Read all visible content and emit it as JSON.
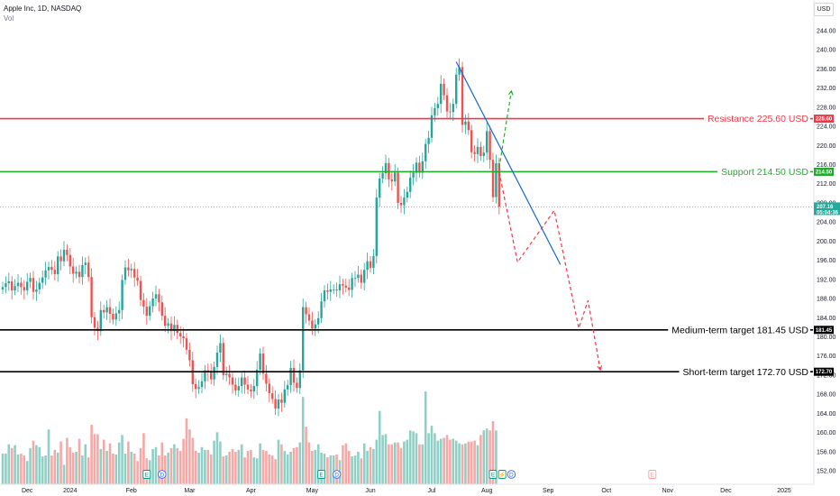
{
  "header": {
    "symbol_line": "Apple Inc, 1D, NASDAQ",
    "vol_label": "Vol",
    "currency_button": "USD"
  },
  "chart_data": {
    "type": "candlestick",
    "symbol": "Apple Inc",
    "interval": "1D",
    "exchange": "NASDAQ",
    "ylim": [
      150,
      248
    ],
    "y_ticks": [
      "244.00",
      "240.00",
      "236.00",
      "232.00",
      "228.00",
      "224.00",
      "220.00",
      "216.00",
      "212.00",
      "208.00",
      "204.00",
      "200.00",
      "196.00",
      "192.00",
      "188.00",
      "184.00",
      "180.00",
      "176.00",
      "172.00",
      "168.00",
      "164.00",
      "160.00",
      "156.00",
      "152.00"
    ],
    "x_ticks": [
      {
        "label": "Dec",
        "index": 8
      },
      {
        "label": "2024",
        "index": 22
      },
      {
        "label": "Feb",
        "index": 42
      },
      {
        "label": "Mar",
        "index": 61
      },
      {
        "label": "Apr",
        "index": 81
      },
      {
        "label": "May",
        "index": 101
      },
      {
        "label": "Jun",
        "index": 120
      },
      {
        "label": "Jul",
        "index": 140
      },
      {
        "label": "Aug",
        "index": 158
      },
      {
        "label": "Sep",
        "index": 178
      },
      {
        "label": "Oct",
        "index": 197
      },
      {
        "label": "Nov",
        "index": 217
      },
      {
        "label": "Dec",
        "index": 236
      },
      {
        "label": "2025",
        "index": 255
      }
    ],
    "closes": [
      190.4,
      191.2,
      191.6,
      189.7,
      190.6,
      191.3,
      190.4,
      189.7,
      191.5,
      192.3,
      189.4,
      189.9,
      191.3,
      192.4,
      193.9,
      194.6,
      194.0,
      193.1,
      196.8,
      195.8,
      198.2,
      197.1,
      194.7,
      193.2,
      193.6,
      192.5,
      195.0,
      195.5,
      192.5,
      184.1,
      181.9,
      181.2,
      185.6,
      185.1,
      186.2,
      184.8,
      183.6,
      184.9,
      185.6,
      191.9,
      194.5,
      193.9,
      194.2,
      192.4,
      191.7,
      187.7,
      186.3,
      184.4,
      186.4,
      188.0,
      188.9,
      187.2,
      184.4,
      182.3,
      182.8,
      181.2,
      182.5,
      180.8,
      180.1,
      179.7,
      177.3,
      175.1,
      170.1,
      169.1,
      169.5,
      170.7,
      173.0,
      172.6,
      171.1,
      173.7,
      176.7,
      178.7,
      172.0,
      172.3,
      171.5,
      170.0,
      168.8,
      169.7,
      171.5,
      170.0,
      169.0,
      168.6,
      169.7,
      173.1,
      176.5,
      172.3,
      170.2,
      168.2,
      167.0,
      165.0,
      166.9,
      166.2,
      169.0,
      169.9,
      173.5,
      170.4,
      169.3,
      173.0,
      186.2,
      184.7,
      183.4,
      181.7,
      182.6,
      183.9,
      187.4,
      189.7,
      189.4,
      189.9,
      189.9,
      189.7,
      191.0,
      190.7,
      190.3,
      189.8,
      192.3,
      192.3,
      193.0,
      191.3,
      194.0,
      195.8,
      194.4,
      196.9,
      209.1,
      213.1,
      214.2,
      216.3,
      212.9,
      212.5,
      214.3,
      208.0,
      207.5,
      209.1,
      210.3,
      213.3,
      214.3,
      216.4,
      214.3,
      216.7,
      220.3,
      221.6,
      226.3,
      227.8,
      228.7,
      232.9,
      230.5,
      227.1,
      227.0,
      228.7,
      234.8,
      236.4,
      224.3,
      225.0,
      223.2,
      218.6,
      218.2,
      219.7,
      217.8,
      218.5,
      223.0,
      217.0,
      209.2,
      216.3,
      207.2
    ],
    "volume_level": [
      0.33,
      0.33,
      0.43,
      0.39,
      0.42,
      0.32,
      0.33,
      0.31,
      0.25,
      0.39,
      0.47,
      0.42,
      0.4,
      0.3,
      0.31,
      0.59,
      0.31,
      0.37,
      0.34,
      0.46,
      0.21,
      0.5,
      0.4,
      0.34,
      0.35,
      0.49,
      0.31,
      0.43,
      0.29,
      0.64,
      0.54,
      0.54,
      0.38,
      0.48,
      0.36,
      0.44,
      0.33,
      0.32,
      0.45,
      0.53,
      0.33,
      0.46,
      0.35,
      0.33,
      0.25,
      0.39,
      0.55,
      0.28,
      0.26,
      0.38,
      0.4,
      0.31,
      0.45,
      0.31,
      0.34,
      0.39,
      0.43,
      0.39,
      0.36,
      0.49,
      0.71,
      0.59,
      0.5,
      0.36,
      0.34,
      0.4,
      0.37,
      0.37,
      0.32,
      0.47,
      0.56,
      0.46,
      0.3,
      0.31,
      0.35,
      0.38,
      0.35,
      0.37,
      0.43,
      0.29,
      0.36,
      0.37,
      0.29,
      0.28,
      0.44,
      0.37,
      0.36,
      0.32,
      0.31,
      0.27,
      0.48,
      0.43,
      0.36,
      0.32,
      0.35,
      0.39,
      0.4,
      0.45,
      0.94,
      0.62,
      0.45,
      0.36,
      0.37,
      0.43,
      0.34,
      0.33,
      0.29,
      0.31,
      0.31,
      0.32,
      0.26,
      0.42,
      0.44,
      0.36,
      0.3,
      0.31,
      0.35,
      0.28,
      0.44,
      0.36,
      0.4,
      0.38,
      0.48,
      0.79,
      0.53,
      0.54,
      0.43,
      0.43,
      0.45,
      0.45,
      0.39,
      0.46,
      0.48,
      0.58,
      0.57,
      0.55,
      0.43,
      0.43,
      1.0,
      0.55,
      0.63,
      0.55,
      0.47,
      0.49,
      0.5,
      0.53,
      0.48,
      0.49,
      0.47,
      0.44,
      0.43,
      0.44,
      0.46,
      0.46,
      0.47,
      0.42,
      0.53,
      0.58,
      0.6,
      0.58,
      0.68,
      0.58
    ],
    "annotations": [
      {
        "label": "Resistance 225.60 USD",
        "value": 225.6,
        "tag": "225.60",
        "color": "#f23645"
      },
      {
        "label": "Support 214.50 USD",
        "value": 214.5,
        "tag": "214.50",
        "color": "#22ab2c"
      },
      {
        "label": "Medium-term target 181.45 USD",
        "value": 181.45,
        "tag": "181.45",
        "color": "#000000"
      },
      {
        "label": "Short-term target 172.70 USD",
        "value": 172.7,
        "tag": "172.70",
        "color": "#000000"
      }
    ],
    "last_price": {
      "value": 207.16,
      "label": "207.16",
      "countdown": "05:04:36",
      "color": "#22ab9a"
    },
    "trendline": {
      "from": {
        "index": 148,
        "price": 237.5
      },
      "to": {
        "index": 182,
        "price": 195.1
      },
      "color": "#1565d8"
    },
    "projection_up": {
      "points": [
        {
          "index": 162,
          "price": 215.3
        },
        {
          "index": 166,
          "price": 231.4
        }
      ],
      "color": "#22ab2c"
    },
    "projection_down": {
      "points": [
        {
          "index": 162,
          "price": 214.5
        },
        {
          "index": 168,
          "price": 195.6
        },
        {
          "index": 180,
          "price": 206.4
        },
        {
          "index": 188,
          "price": 181.8
        },
        {
          "index": 191,
          "price": 187.6
        },
        {
          "index": 195,
          "price": 173.1
        }
      ],
      "color": "#f23645"
    },
    "event_markers": [
      {
        "letter": "E",
        "index": 47
      },
      {
        "letter": "D",
        "index": 52
      },
      {
        "letter": "E",
        "index": 104
      },
      {
        "letter": "D",
        "index": 109
      },
      {
        "letter": "E",
        "index": 160
      },
      {
        "letter": "⚡",
        "index": 163
      },
      {
        "letter": "D",
        "index": 166
      },
      {
        "letter": "E",
        "index": 212
      }
    ]
  }
}
